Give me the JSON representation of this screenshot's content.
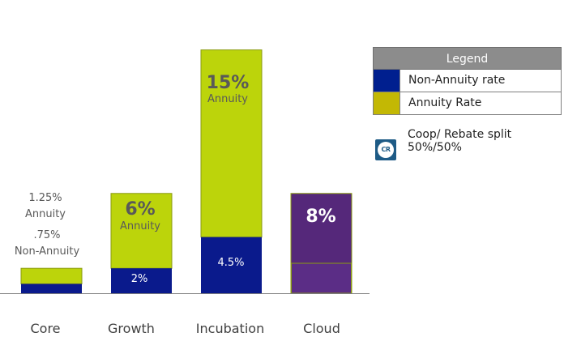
{
  "chart_data": {
    "type": "bar",
    "stacked": true,
    "categories": [
      "Core",
      "Growth",
      "Incubation",
      "Cloud"
    ],
    "series": [
      {
        "name": "Non-Annuity rate",
        "color": "#0a1a8c",
        "values": [
          0.75,
          2,
          4.5,
          0
        ]
      },
      {
        "name": "Annuity Rate",
        "color": "#bcd40b",
        "values": [
          1.25,
          6,
          15,
          0
        ]
      },
      {
        "name": "Coop/ Rebate split 50%/50%",
        "color": "#55287a",
        "values": [
          0,
          0,
          0,
          8
        ]
      }
    ],
    "ylim": [
      0,
      23.5
    ],
    "data_labels": {
      "core_annuity_value": "1.25%",
      "core_annuity_word": "Annuity",
      "core_non_annuity_value": ".75%",
      "core_non_annuity_word": "Non-Annuity",
      "growth_annuity_value": "6%",
      "growth_annuity_word": "Annuity",
      "growth_non_annuity": "2%",
      "incubation_annuity_value": "15%",
      "incubation_annuity_word": "Annuity",
      "incubation_non_annuity": "4.5%",
      "cloud_value": "8%"
    },
    "title": "",
    "xlabel": "",
    "ylabel": ""
  },
  "legend": {
    "title": "Legend",
    "items": [
      {
        "label": "Non-Annuity rate",
        "color": "#001f8f"
      },
      {
        "label": "Annuity Rate",
        "color": "#c3b804"
      }
    ],
    "coop": {
      "icon_text": "CR",
      "line1": "Coop/ Rebate split",
      "line2": "50%/50%"
    }
  },
  "colors": {
    "non_annuity": "#0a1a8c",
    "annuity": "#bcd40b",
    "cloud": "#55287a",
    "cloud_lower": "#5b2d86",
    "axis": "#7f7f7f",
    "bar_outline": "#8a9a10"
  }
}
